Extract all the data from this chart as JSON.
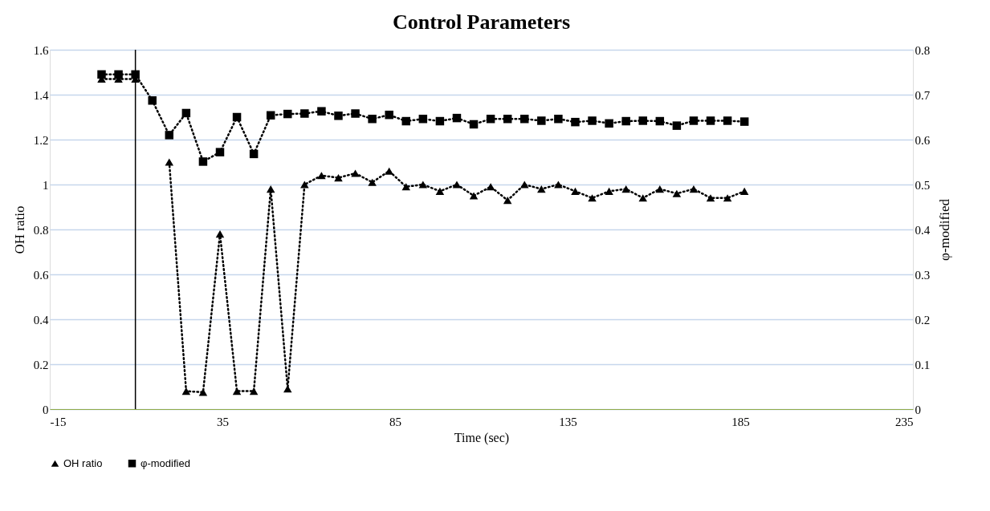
{
  "chart_data": {
    "type": "line",
    "title": "Control Parameters",
    "xlabel": "Time (sec)",
    "ylabel": "OH ratio",
    "y2label": "φ-modified",
    "xlim": [
      -15,
      235
    ],
    "xticks": [
      -15,
      35,
      85,
      135,
      185,
      235
    ],
    "ylim": [
      0,
      1.6
    ],
    "yticks": [
      0,
      0.2,
      0.4,
      0.6,
      0.8,
      1,
      1.2,
      1.4,
      1.6
    ],
    "y2lim": [
      0,
      0.8
    ],
    "y2ticks": [
      0,
      0.1,
      0.2,
      0.3,
      0.4,
      0.5,
      0.6,
      0.7,
      0.8
    ],
    "grid": "y",
    "legend": "bottom",
    "line_style": "dotted",
    "x": [
      0,
      4.9,
      9.8,
      14.7,
      19.6,
      24.5,
      29.4,
      34.3,
      39.2,
      44.1,
      49,
      53.9,
      58.8,
      63.7,
      68.6,
      73.5,
      78.4,
      83.3,
      88.2,
      93.1,
      98,
      102.9,
      107.8,
      112.7,
      117.6,
      122.5,
      127.4,
      132.3,
      137.2,
      142.1,
      147,
      151.9,
      156.8,
      161.7,
      166.6,
      171.5,
      176.4,
      181.3,
      186.2
    ],
    "ref_lines": [
      {
        "axis": "x",
        "value": 9.8,
        "label": null,
        "color": "#000000",
        "line_style": "solid"
      }
    ],
    "series": [
      {
        "name": "OH ratio",
        "color": "#000000",
        "marker": "triangle",
        "values": [
          1.47,
          1.47,
          1.47,
          null,
          1.1,
          0.08,
          0.075,
          0.78,
          0.08,
          0.08,
          0.98,
          0.09,
          1.0,
          1.04,
          1.03,
          1.05,
          1.01,
          1.06,
          0.99,
          1.0,
          0.97,
          1.0,
          0.95,
          0.99,
          0.93,
          1.0,
          0.98,
          1.0,
          0.97,
          0.94,
          0.97,
          0.98,
          0.94,
          0.98,
          0.96,
          0.98,
          0.94,
          0.94,
          0.97
        ]
      },
      {
        "name": "φ-modified",
        "color": "#000000",
        "marker": "square",
        "axis": "y2",
        "values": [
          0.745,
          0.745,
          0.745,
          0.687,
          0.61,
          0.659,
          0.551,
          0.572,
          0.65,
          0.568,
          0.654,
          0.657,
          0.658,
          0.663,
          0.653,
          0.658,
          0.646,
          0.655,
          0.641,
          0.646,
          0.641,
          0.648,
          0.634,
          0.646,
          0.646,
          0.646,
          0.642,
          0.646,
          0.639,
          0.642,
          0.636,
          0.641,
          0.642,
          0.641,
          0.631,
          0.642,
          0.642,
          0.642,
          0.64
        ]
      }
    ]
  }
}
